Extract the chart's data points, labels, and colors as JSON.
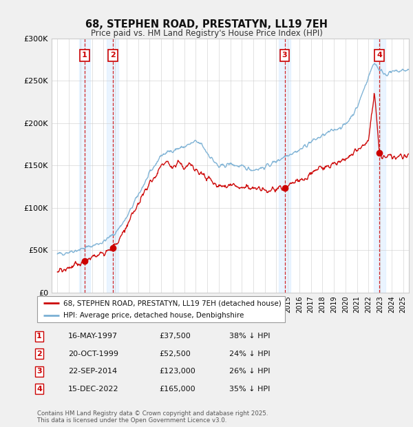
{
  "title": "68, STEPHEN ROAD, PRESTATYN, LL19 7EH",
  "subtitle": "Price paid vs. HM Land Registry's House Price Index (HPI)",
  "red_line_label": "68, STEPHEN ROAD, PRESTATYN, LL19 7EH (detached house)",
  "blue_line_label": "HPI: Average price, detached house, Denbighshire",
  "transactions": [
    {
      "num": 1,
      "date": "16-MAY-1997",
      "year": 1997.37,
      "price": 37500,
      "pct": "38% ↓ HPI"
    },
    {
      "num": 2,
      "date": "20-OCT-1999",
      "year": 1999.79,
      "price": 52500,
      "pct": "24% ↓ HPI"
    },
    {
      "num": 3,
      "date": "22-SEP-2014",
      "year": 2014.72,
      "price": 123000,
      "pct": "26% ↓ HPI"
    },
    {
      "num": 4,
      "date": "15-DEC-2022",
      "year": 2022.95,
      "price": 165000,
      "pct": "35% ↓ HPI"
    }
  ],
  "ylim": [
    0,
    300000
  ],
  "xlim": [
    1994.5,
    2025.5
  ],
  "yticks": [
    0,
    50000,
    100000,
    150000,
    200000,
    250000,
    300000
  ],
  "ytick_labels": [
    "£0",
    "£50K",
    "£100K",
    "£150K",
    "£200K",
    "£250K",
    "£300K"
  ],
  "footer": "Contains HM Land Registry data © Crown copyright and database right 2025.\nThis data is licensed under the Open Government Licence v3.0.",
  "bg_color": "#f0f0f0",
  "plot_bg": "#ffffff",
  "red_color": "#cc0000",
  "blue_color": "#7ab0d4",
  "grid_color": "#cccccc",
  "vline_color": "#cc0000",
  "shade_color": "#ddeeff",
  "box_color": "#cc0000",
  "hpi_keypoints": [
    [
      1995.0,
      45000
    ],
    [
      1996.0,
      48000
    ],
    [
      1997.0,
      51000
    ],
    [
      1998.0,
      55000
    ],
    [
      1999.0,
      60000
    ],
    [
      2000.0,
      70000
    ],
    [
      2001.0,
      88000
    ],
    [
      2002.0,
      115000
    ],
    [
      2003.0,
      140000
    ],
    [
      2004.0,
      162000
    ],
    [
      2005.0,
      168000
    ],
    [
      2006.0,
      172000
    ],
    [
      2007.0,
      178000
    ],
    [
      2007.5,
      175000
    ],
    [
      2008.0,
      165000
    ],
    [
      2009.0,
      148000
    ],
    [
      2010.0,
      152000
    ],
    [
      2011.0,
      148000
    ],
    [
      2012.0,
      145000
    ],
    [
      2013.0,
      148000
    ],
    [
      2014.0,
      155000
    ],
    [
      2015.0,
      163000
    ],
    [
      2016.0,
      168000
    ],
    [
      2017.0,
      178000
    ],
    [
      2018.0,
      185000
    ],
    [
      2019.0,
      192000
    ],
    [
      2020.0,
      198000
    ],
    [
      2021.0,
      218000
    ],
    [
      2022.0,
      255000
    ],
    [
      2022.5,
      272000
    ],
    [
      2023.0,
      262000
    ],
    [
      2023.5,
      258000
    ],
    [
      2024.0,
      260000
    ],
    [
      2025.0,
      262000
    ],
    [
      2025.5,
      263000
    ]
  ],
  "red_keypoints": [
    [
      1995.0,
      25000
    ],
    [
      1996.0,
      28000
    ],
    [
      1997.37,
      37500
    ],
    [
      1998.0,
      41000
    ],
    [
      1999.0,
      48000
    ],
    [
      1999.79,
      52500
    ],
    [
      2000.5,
      65000
    ],
    [
      2001.5,
      90000
    ],
    [
      2002.5,
      118000
    ],
    [
      2003.5,
      138000
    ],
    [
      2004.0,
      148000
    ],
    [
      2004.5,
      155000
    ],
    [
      2005.0,
      148000
    ],
    [
      2005.5,
      155000
    ],
    [
      2006.0,
      148000
    ],
    [
      2006.5,
      152000
    ],
    [
      2007.0,
      145000
    ],
    [
      2008.0,
      135000
    ],
    [
      2009.0,
      125000
    ],
    [
      2010.0,
      128000
    ],
    [
      2011.0,
      124000
    ],
    [
      2012.0,
      122000
    ],
    [
      2013.0,
      120000
    ],
    [
      2014.0,
      122000
    ],
    [
      2014.72,
      123000
    ],
    [
      2015.0,
      126000
    ],
    [
      2016.0,
      132000
    ],
    [
      2017.0,
      140000
    ],
    [
      2018.0,
      148000
    ],
    [
      2019.0,
      152000
    ],
    [
      2020.0,
      158000
    ],
    [
      2021.0,
      168000
    ],
    [
      2022.0,
      178000
    ],
    [
      2022.5,
      238000
    ],
    [
      2022.95,
      165000
    ],
    [
      2023.2,
      158000
    ],
    [
      2023.5,
      162000
    ],
    [
      2024.0,
      162000
    ],
    [
      2025.0,
      160000
    ],
    [
      2025.5,
      162000
    ]
  ]
}
